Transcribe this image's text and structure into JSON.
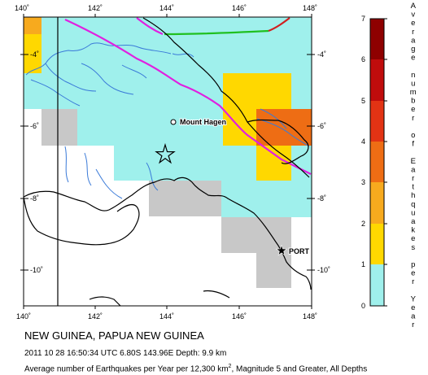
{
  "map": {
    "lon_ticks": [
      "140˚",
      "142˚",
      "144˚",
      "146˚",
      "148˚"
    ],
    "lat_ticks": [
      "-4˚",
      "-6˚",
      "-8˚",
      "-10˚"
    ],
    "places": [
      {
        "name": "Mount Hagen",
        "symbol": "circle"
      },
      {
        "name": "PORT",
        "symbol": "star-filled"
      }
    ],
    "epicenter": {
      "lat": -6.8,
      "lon": 143.96,
      "symbol": "open-star-icon"
    },
    "colors": {
      "grid_cells": {
        "0": "#c8c8c8",
        "1": "#9ff0ec",
        "2": "#ffd800",
        "3": "#f7aa1e",
        "4": "#ee6d14",
        "5": "#e23314",
        "6": "#c00c0c",
        "7": "#8e0000"
      },
      "plate_boundary_magenta": "#e020e0",
      "plate_boundary_green": "#20c020",
      "plate_boundary_red": "#d02020",
      "rivers": "#3a7ad8",
      "coastline": "#000000"
    }
  },
  "legend": {
    "ticks": [
      "7",
      "6",
      "5",
      "4",
      "3",
      "2",
      "1",
      "0"
    ],
    "title_words": [
      "Average",
      "number",
      "of",
      "Earthquakes",
      "per",
      "Year"
    ],
    "scale_colors": [
      "#8e0000",
      "#c00c0c",
      "#e23314",
      "#ee6d14",
      "#f7aa1e",
      "#ffd800",
      "#9ff0ec",
      "#c8c8c8"
    ]
  },
  "caption": {
    "region": "NEW GUINEA, PAPUA NEW GUINEA",
    "event": "2011 10 28 16:50:34 UTC 6.80S 143.96E Depth: 9.9 km",
    "stats_before": "Average number of Earthquakes per Year per 12,300 km",
    "stats_sup": "2",
    "stats_after": ", Magnitude 5 and Greater, All Depths"
  }
}
